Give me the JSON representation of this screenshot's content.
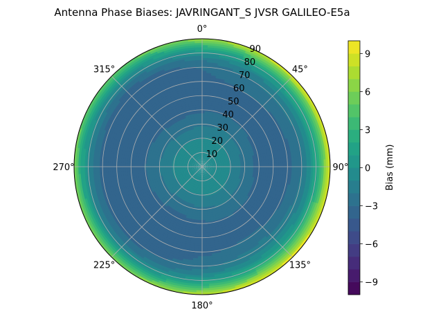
{
  "chart_data": {
    "type": "heatmap",
    "projection": "polar",
    "title": "Antenna Phase Biases: JAVRINGANT_S    JVSR GALILEO-E5a",
    "angular_ticks": [
      "0°",
      "45°",
      "90°",
      "135°",
      "180°",
      "225°",
      "270°",
      "315°"
    ],
    "radial_ticks": [
      "10",
      "20",
      "30",
      "40",
      "50",
      "60",
      "70",
      "80",
      "90"
    ],
    "radial_range": [
      0,
      90
    ],
    "grid": true,
    "colorbar": {
      "label": "Bias (mm)",
      "range": [
        -10,
        10
      ],
      "ticks": [
        "−9",
        "−6",
        "−3",
        "0",
        "3",
        "6",
        "9"
      ],
      "levels": 20,
      "colormap": "viridis"
    },
    "bias_profile_by_zenith": {
      "zenith_deg": [
        0,
        10,
        20,
        30,
        40,
        50,
        60,
        70,
        75,
        80,
        85,
        90
      ],
      "bias_mm": [
        0,
        -0.3,
        -1,
        -2.2,
        -3.2,
        -3.6,
        -3.4,
        -2.6,
        -1.6,
        0.5,
        3.5,
        7.5
      ]
    },
    "azimuth_modulation": "stronger positive bias near 90°-120° azimuth at high zenith"
  }
}
